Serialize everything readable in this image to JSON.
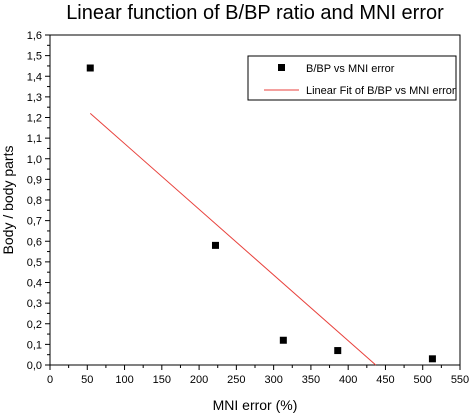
{
  "chart_data": {
    "type": "scatter",
    "title": "Linear function of B/BP ratio and MNI error",
    "xlabel": "MNI error (%)",
    "ylabel": "Body / body parts",
    "xlim": [
      0,
      550
    ],
    "ylim": [
      0,
      1.6
    ],
    "x_ticks": [
      "0",
      "50",
      "100",
      "150",
      "200",
      "250",
      "300",
      "350",
      "400",
      "450",
      "500",
      "550"
    ],
    "y_ticks": [
      "0,0",
      "0,1",
      "0,2",
      "0,3",
      "0,4",
      "0,5",
      "0,6",
      "0,7",
      "0,8",
      "0,9",
      "1,0",
      "1,1",
      "1,2",
      "1,3",
      "1,4",
      "1,5",
      "1,6"
    ],
    "grid": false,
    "legend_position": "top-right",
    "series": [
      {
        "name": "B/BP vs MNI error",
        "kind": "scatter",
        "marker": "square",
        "color": "#000000",
        "x": [
          54,
          222,
          313,
          386,
          513
        ],
        "y": [
          1.44,
          0.58,
          0.12,
          0.07,
          0.03
        ]
      },
      {
        "name": "Linear Fit of B/BP vs MNI error",
        "kind": "line",
        "color": "#e8413c",
        "x": [
          54,
          437
        ],
        "y": [
          1.22,
          0.0
        ]
      }
    ]
  }
}
